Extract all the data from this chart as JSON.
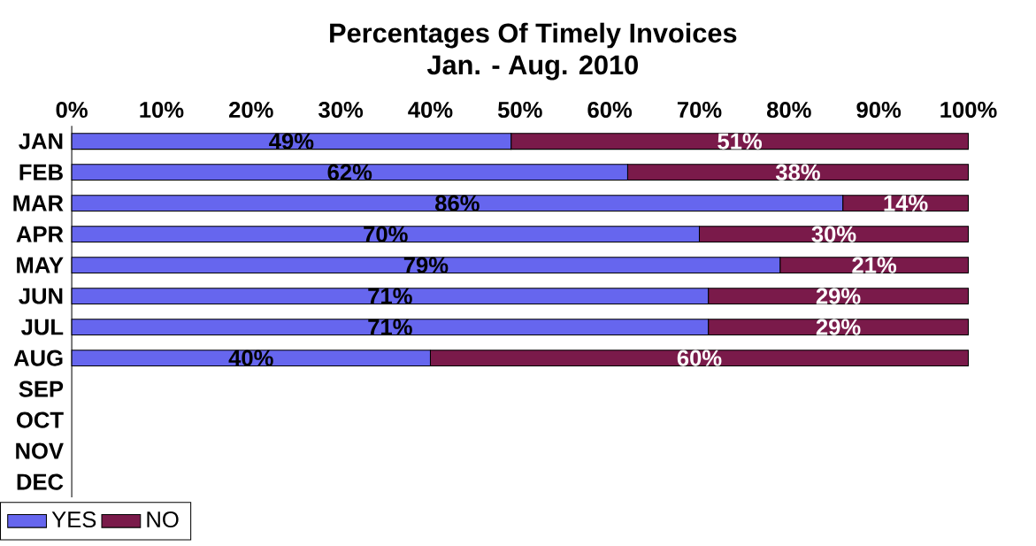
{
  "chart_data": {
    "type": "bar",
    "orientation": "horizontal",
    "stacked": true,
    "title": "Percentages Of Timely Invoices",
    "subtitle": "Jan. - Aug. 2010",
    "categories": [
      "JAN",
      "FEB",
      "MAR",
      "APR",
      "MAY",
      "JUN",
      "JUL",
      "AUG",
      "SEP",
      "OCT",
      "NOV",
      "DEC"
    ],
    "series": [
      {
        "name": "YES",
        "color": "#6666ee",
        "values": [
          49,
          62,
          86,
          70,
          79,
          71,
          71,
          40,
          null,
          null,
          null,
          null
        ],
        "value_labels": [
          "49%",
          "62%",
          "86%",
          "70%",
          "79%",
          "71%",
          "71%",
          "40%",
          null,
          null,
          null,
          null
        ]
      },
      {
        "name": "NO",
        "color": "#7a1a4a",
        "values": [
          51,
          38,
          14,
          30,
          21,
          29,
          29,
          60,
          null,
          null,
          null,
          null
        ],
        "value_labels": [
          "51%",
          "38%",
          "14%",
          "30%",
          "21%",
          "29%",
          "29%",
          "60%",
          null,
          null,
          null,
          null
        ]
      }
    ],
    "xlim": [
      0,
      100
    ],
    "xticks": [
      {
        "value": 0,
        "label": "0%"
      },
      {
        "value": 10,
        "label": "10%"
      },
      {
        "value": 20,
        "label": "20%"
      },
      {
        "value": 30,
        "label": "30%"
      },
      {
        "value": 40,
        "label": "40%"
      },
      {
        "value": 50,
        "label": "50%"
      },
      {
        "value": 60,
        "label": "60%"
      },
      {
        "value": 70,
        "label": "70%"
      },
      {
        "value": 80,
        "label": "80%"
      },
      {
        "value": 90,
        "label": "90%"
      },
      {
        "value": 100,
        "label": "100%"
      }
    ],
    "legend": "bottom left"
  }
}
